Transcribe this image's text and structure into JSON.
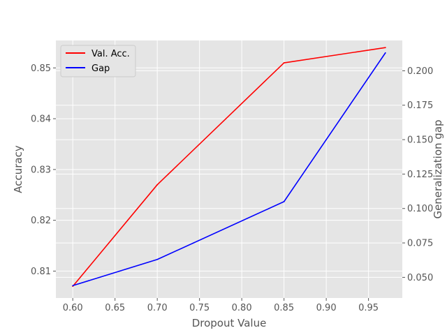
{
  "chart_data": {
    "type": "line",
    "title": "",
    "xlabel": "Dropout Value",
    "ylabel_left": "Accuracy",
    "ylabel_right": "Generalization gap",
    "x": [
      0.6,
      0.7,
      0.85,
      0.97
    ],
    "xlim": [
      0.58,
      0.99
    ],
    "ylim_left": [
      0.8047,
      0.8554
    ],
    "ylim_right": [
      0.035,
      0.222
    ],
    "xticks": [
      "0.60",
      "0.65",
      "0.70",
      "0.75",
      "0.80",
      "0.85",
      "0.90",
      "0.95"
    ],
    "yticks_left": [
      "0.81",
      "0.82",
      "0.83",
      "0.84",
      "0.85"
    ],
    "yticks_right": [
      "0.050",
      "0.075",
      "0.100",
      "0.125",
      "0.150",
      "0.175",
      "0.200"
    ],
    "grid": true,
    "legend_position": "top-left",
    "series": [
      {
        "name": "Val. Acc.",
        "axis": "left",
        "color": "#ff0000",
        "values": [
          0.807,
          0.827,
          0.851,
          0.854
        ]
      },
      {
        "name": "Gap",
        "axis": "right",
        "color": "#0000ff",
        "values": [
          0.044,
          0.063,
          0.105,
          0.213
        ]
      }
    ]
  }
}
